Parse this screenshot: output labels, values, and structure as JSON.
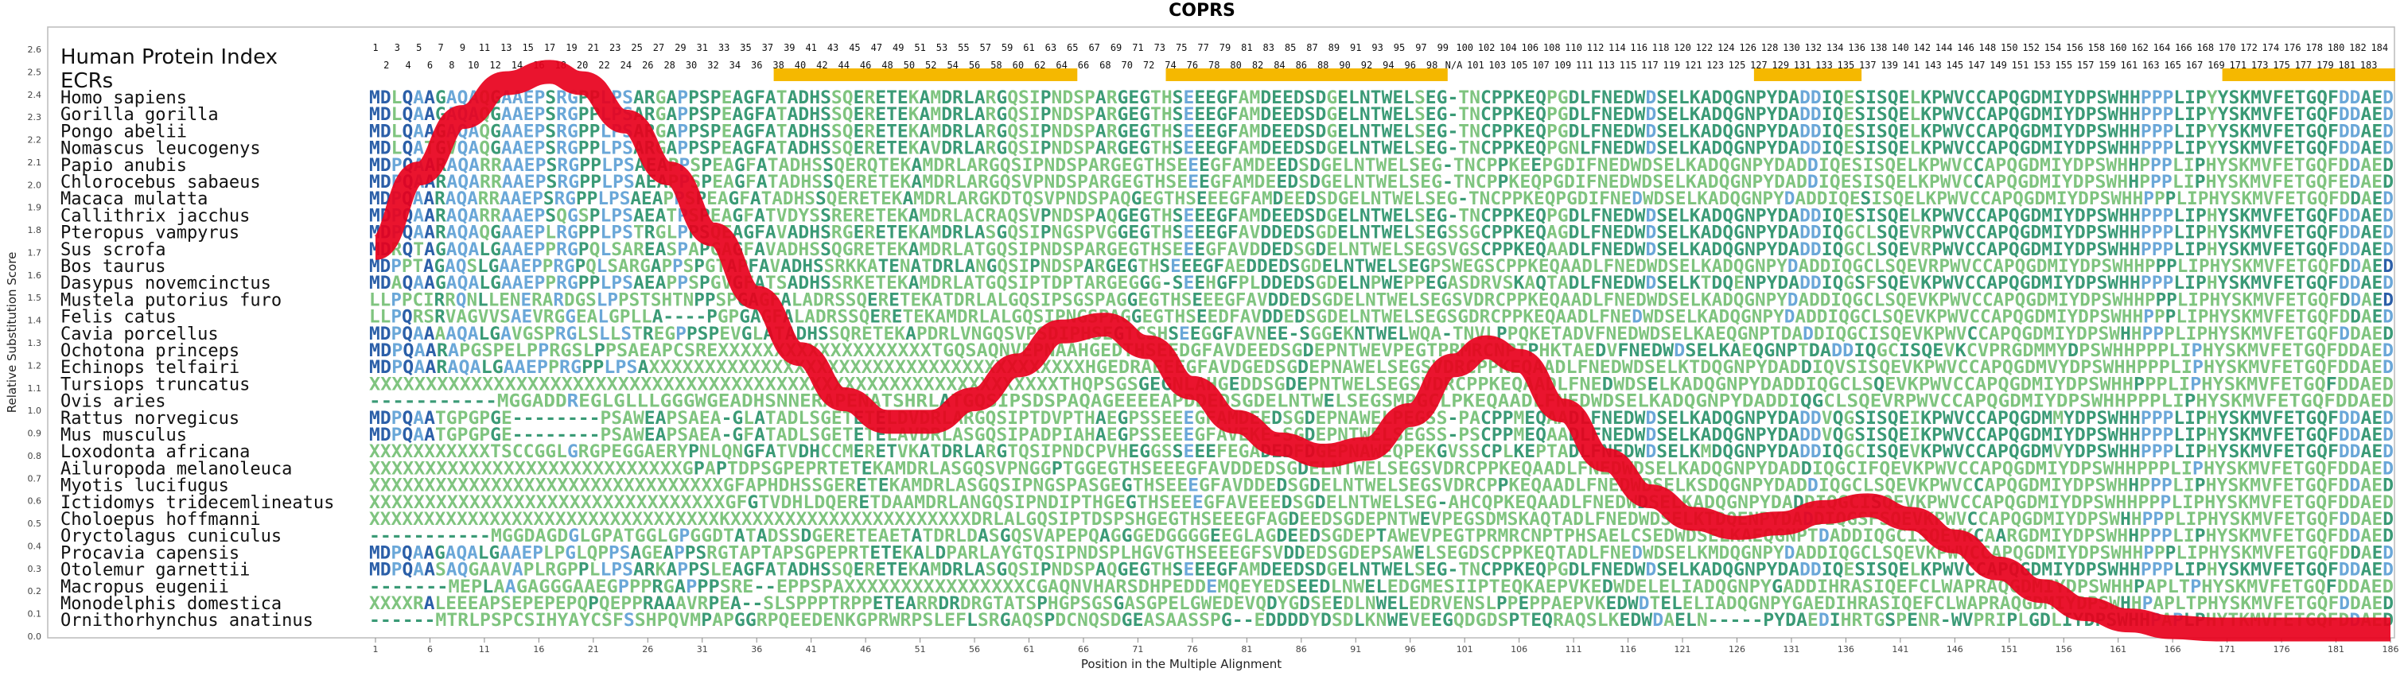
{
  "chart_data": {
    "type": "line",
    "title": "COPRS",
    "xlabel": "Position in the Multiple Alignment",
    "ylabel": "Relative Substitution Score",
    "ylim": [
      0,
      2.6
    ],
    "xlim": [
      1,
      186
    ],
    "x_ticks": [
      1,
      6,
      11,
      16,
      21,
      26,
      31,
      36,
      41,
      46,
      51,
      56,
      61,
      66,
      71,
      76,
      81,
      86,
      91,
      96,
      101,
      106,
      111,
      116,
      121,
      126,
      131,
      136,
      141,
      146,
      151,
      156,
      161,
      166,
      171,
      176,
      181,
      186
    ],
    "y_ticks": [
      0.0,
      0.1,
      0.2,
      0.3,
      0.4,
      0.5,
      0.6,
      0.7,
      0.8,
      0.9,
      1.0,
      1.1,
      1.2,
      1.3,
      1.4,
      1.5,
      1.6,
      1.7,
      1.8,
      1.9,
      2.0,
      2.1,
      2.2,
      2.3,
      2.4,
      2.5,
      2.6
    ],
    "grid": false,
    "series": [
      {
        "color": "#e8001c",
        "x": [
          1,
          5,
          9,
          13,
          17,
          20,
          24,
          28,
          32,
          36,
          40,
          44,
          48,
          52,
          56,
          60,
          64,
          68,
          72,
          76,
          80,
          84,
          88,
          92,
          96,
          100,
          103,
          106,
          110,
          114,
          118,
          122,
          126,
          130,
          134,
          138,
          142,
          146,
          150,
          154,
          158,
          162,
          166,
          170,
          174,
          178,
          182,
          186
        ],
        "y": [
          1.72,
          2.05,
          2.3,
          2.45,
          2.5,
          2.45,
          2.28,
          2.05,
          1.78,
          1.5,
          1.25,
          1.05,
          0.95,
          0.95,
          1.05,
          1.2,
          1.35,
          1.38,
          1.28,
          1.1,
          0.95,
          0.85,
          0.8,
          0.83,
          0.98,
          1.2,
          1.28,
          1.22,
          1.0,
          0.78,
          0.62,
          0.52,
          0.48,
          0.5,
          0.55,
          0.58,
          0.52,
          0.42,
          0.3,
          0.2,
          0.12,
          0.07,
          0.04,
          0.03,
          0.03,
          0.03,
          0.03,
          0.03
        ]
      }
    ]
  },
  "alignment": {
    "top_numbers_odd": [
      "1",
      "3",
      "5",
      "7",
      "9",
      "11",
      "13",
      "15",
      "17",
      "19",
      "21",
      "23",
      "25",
      "27",
      "29",
      "31",
      "33",
      "35",
      "37",
      "39",
      "41",
      "43",
      "45",
      "47",
      "49",
      "51",
      "53",
      "55",
      "57",
      "59",
      "61",
      "63",
      "65",
      "67",
      "69",
      "71",
      "73",
      "75",
      "77",
      "79",
      "81",
      "83",
      "85",
      "87",
      "89",
      "91",
      "93",
      "95",
      "97",
      "99",
      "100",
      "102",
      "104",
      "106",
      "108",
      "110",
      "112",
      "114",
      "116",
      "118",
      "120",
      "122",
      "124",
      "126",
      "128",
      "130",
      "132",
      "134",
      "136",
      "138",
      "140",
      "142",
      "144",
      "146",
      "148",
      "150",
      "152",
      "154",
      "156",
      "158",
      "160",
      "162",
      "164",
      "166",
      "168",
      "170",
      "172",
      "174",
      "176",
      "178",
      "180",
      "182",
      "184"
    ],
    "top_numbers_even": [
      "2",
      "4",
      "6",
      "8",
      "10",
      "12",
      "14",
      "16",
      "18",
      "20",
      "22",
      "24",
      "26",
      "28",
      "30",
      "32",
      "34",
      "36",
      "38",
      "40",
      "42",
      "44",
      "46",
      "48",
      "50",
      "52",
      "54",
      "56",
      "58",
      "60",
      "62",
      "64",
      "66",
      "68",
      "70",
      "72",
      "74",
      "76",
      "78",
      "80",
      "82",
      "84",
      "86",
      "88",
      "90",
      "92",
      "94",
      "96",
      "98",
      "N/A",
      "101",
      "103",
      "105",
      "107",
      "109",
      "111",
      "113",
      "115",
      "117",
      "119",
      "121",
      "123",
      "125",
      "127",
      "129",
      "131",
      "133",
      "135",
      "137",
      "139",
      "141",
      "143",
      "145",
      "147",
      "149",
      "151",
      "153",
      "155",
      "157",
      "159",
      "161",
      "163",
      "165",
      "167",
      "169",
      "171",
      "173",
      "175",
      "177",
      "179",
      "181",
      "183"
    ],
    "human_protein_index_label": "Human Protein Index",
    "ecr_label": "ECRs",
    "ecr_color": "#f5b800",
    "ecr_ranges": [
      [
        38,
        65
      ],
      [
        74,
        99
      ],
      [
        128,
        137
      ],
      [
        171,
        186
      ]
    ],
    "colors": {
      "conserved": "#2b5fa8",
      "similar": "#6aa7d8",
      "variable": "#3a9a76",
      "divergent": "#7fc47f"
    },
    "rows": [
      {
        "species": "Homo sapiens",
        "seq": "MDLQAAGAQAQGAAEPSRGPPLPSARGAPPSPEAGFATADHSSQERETEKAMDRLARGQSIPNDSPARGEGTHSEEEGFAMDEEDSDGELNTWELSEG-TNCPPKEQPGDLFNEDWDSELKADQGNPYDADDIQESISQELKPWVCCAPQGDMIYDPSWHHPPPLIPYYSKMVFETGQFDDAED"
      },
      {
        "species": "Gorilla gorilla",
        "seq": "MDLQAAGAQAQGAAEPSRGPPLPSARGAPPSPEAGFATADHSSQERETEKAMDRLARGQSIPNDSPARGEGTHSEEEGFAMDEEDSDGELNTWELSEG-TNCPPKEQPGDLFNEDWDSELKADQGNPYDADDIQESISQELKPWVCCAPQGDMIYDPSWHHPPPLIPYYSKMVFETGQFDDAED"
      },
      {
        "species": "Pongo abelii",
        "seq": "MDLQAAGAQAQGAAEPSRGPPLPSARGAPPSPEAGFATADHSSQERETEKAMDRLARGQSIPNDSPARGEGTHSEEEGFAMDEEDSDGELNTWELSEG-TNCPPKEQPGDLFNEDWDSELKADQGNPYDADDIQESISQELKPWVCCAPQGDMIYDPSWHHPPPLIPYYSKMVFETGQFDDAED"
      },
      {
        "species": "Nomascus leucogenys",
        "seq": "MDLQATGVQAQGAAEPSRGPPLPSARGAPPSPEAGFATADHSSQERETEKAVDRLARGQSIPNDSPARGEGTHSEEEGFAMDEEDSDGELNTWELSEG-TNCPPKEQPGNLFNEDWDSELKADQGNPYDADDIQESISQELKPWVCCAPQGDMIYDPSWHHPPPLIPYYSKMVFETGQFDDAED"
      },
      {
        "species": "Papio anubis",
        "seq": "MDPQAARAQARRAAEPSRGPPLPSAEAPPSPEAGFATADHSSQERQTEKAMDRLARGQSIPNDSPARGEGTHSEEEGFAMDEEDSDGELNTWELSEG-TNCPPKEEPGDIFNEDWDSELKADQGNPYDADDIQESISQELKPWVCCAPQGDMIYDPSWHHPPPLIPHYSKMVFETGQFDDAED"
      },
      {
        "species": "Chlorocebus sabaeus",
        "seq": "MDPQAARAQARRAAEPSRGPPLPSAEAPPSPEAGFATADHSSQERETEKAMDRLARGQSVPNDSPARGEGTHSEEEGFAMDEEDSDGELNTWELSEG-TNCPPKEQPGDIFNEDWDSELKADQGNPYDADDIQESISQELKPWVCCAPQGDMIYDPSWHHPPPLIPHYSKMVFETGQFEDAED"
      },
      {
        "species": "Macaca mulatta",
        "seq": "MDPQAARAQARRAAEPSRGPPLPSAEAPPSPEAGFATADHSSQERETEKAMDRLARGKDTQSVPNDSPAQGEGTHSEEEGFAMDEEDSDGELNTWELSEG-TNCPPKEQPGDIFNEDWDSELKADQGNPYDADDIQESISQELKPWVCCAPQGDMIYDPSWHHPPPLIPHYSKMVFETGQFDDAED"
      },
      {
        "species": "Callithrix jacchus",
        "seq": "MDPQAARAQARRAAEPSQGSPLPSAEATPSPEAGFATVDYSSRERETEKAMDRLACRAQSVPNDSPAQGEGTHSEEEGFAMDEEDSDGELNTWELSEG-TNCPPKEQPGDLFNEDWDSELKADQGNPYDADDIQESISQELKPWVCCAPQGDMIYDPSWHHPPPLIPHYSKMVFETGQFDDAED"
      },
      {
        "species": "Pteropus vampyrus",
        "seq": "MDPQAARAQAQGAAEPLRGPPLPSTRGLPPSQEAGFAVADHSRGERETEKAMDRLASGQSIPNGSPVGGEGTHSEEEGFAVDDEDSGDELNTWELSEGSSGCPPKEQAGDLFNEDWDSELKADQGNPYDADDIQGCLSQEVRPWVCCAPQGDMIYDPSWHHPPPLIPHYSKMVFETGQFDDAED"
      },
      {
        "species": "Sus scrofa",
        "seq": "MDRQTAGAQALGAAEPPRGPQLSAREASPAPGAGFAVADHSSQGRETEKAMDRLATGQSIPNDSPARGEGTHSEEEGFAVDDEDSGDELNTWELSEGSVGSCPPKEQAADLFNEDWDSELKADQGNPYDADDIQGCLSQEVRPWVCCAPQGDMIYDPSWHHPPPLIPHYSKMVFETGQFDDAED"
      },
      {
        "species": "Bos taurus",
        "seq": "MDPPTAGAQSLGAAEPPRGPQLSARGAPPSPGTAPFAVADHSSRKKATENATDRLANGQSIPNDSPARGEGTHSEEEGFAEDDEDSGDELNTWELSEGPSWEGSCPPKEQAADLFNEDWDSELKADQGNPYDADDIQGCLSQEVRPWVCCAPQGDMIYDPSWHHPPPLIPHYSKMVFETGQFDDAED"
      },
      {
        "species": "Dasypus novemcinctus",
        "seq": "MDAQAAGAQALGAAEPPRGPPLPSAEAPPSPGVGFATSADHSSRKETEKAMDRLATGQSIPTDPTARGEGGG-SEEHGFPLDDEDSGDELNPWEPPEGASDRVSKAQTADLFNEDWDSELKTDQENPYDADDIQGSFSQEVKPWVCCAPQGDMIYDPSWHHPPPLIPHYSKMVFETGQFDDAED"
      },
      {
        "species": "Mustela putorius furo",
        "seq": "LLPPCIRRQNLLENERARDGSLPPSTSHTNPPSPGAGFALADRSSQERETEKATDRLALGQSIPSGSPAGGEGTHSEEEGFAVDDEDSGDELNTWELSEGSVDRCPPKEQAADLFNEDWDSELKADQGNPYDADDIQGCLSQEVKPWVCCAPQGDMIYDPSWHHPPPLIPHYSKMVFETGQFDDAED"
      },
      {
        "species": "Felis catus",
        "seq": "LLPQRSRVAGVVSAEVRGGEALGPLLA----PGPGAGFALADRSSQERETEKAMDRLALGQSIPNGSPAGGEGTHSEEDFAVDDEDSGDELNTWELSEGSGDRCPPKEQAADLFNEDWDSELKADQGNPYDADDIQGCLSQEVKPWVCCAPQGDMIYDPSWHHPPPLIPHYSKMVFETGQFDDAED"
      },
      {
        "species": "Cavia porcellus",
        "seq": "MDPQAAAAQALGAVGSPRGLSLLSTREGPPSPEVGLATADHSSQRETEKAPDRLVNGQSVPSDIPHSEGTCSHSEEGGFAVNEE-SGGEKNTWELWQA-TNVLPPQKETADVFNEDWDSELKAEQGNPTDADDIQGCISQEVKPWVCCAPQGDMIYDPSWHHPPPLIPHYSKMVFETGQFDDAED"
      },
      {
        "species": "Ochotona princeps",
        "seq": "MDPQAARAPGSPELPPRGSLPPSAEAPCSREXXXXXXXXXXXXXXXXXXXTGQSAQNVEPNAAHGEDTHSEEDGFAVDEEDSGDEPNTWEVPEGTPRMRCNPTPHKTAEDVFNEDWDSELKAEQGNPTDADDIQGCISQEVKCVPRGDMMYDPSWHHPPPLIPHYSKMVFETGQFDDAED"
      },
      {
        "species": "Echinops telfairi",
        "seq": "MDPQAARAQALGAAEPPRGPPLPSAXXXXXXXXXXXXXXXXXXXXXXXXXXXXXXXXXXXXXXXHGEDRAEEEGFAVDGEDSGDEPNAWELSEGSVDRCPPKEQAADLFNEDWDSELKTDQGNPYDADDIQVSISQEVKPWVCCAPQGDMVYDPSWHHPPPLIPHYSKMVFETGQFDDAED"
      },
      {
        "species": "Tursiops truncatus",
        "seq": "XXXXXXXXXXXXXXXXXXXXXXXXXXXXXXXXXXXXXXXXXXXXXXXXXXXXXXXXXXXXXTHQPSGSGEGNLAHGEDDSGDEPNTWELSEGSVDRCPPKEQAADLFNEDWDSELKADQGNPYDADDIQGCLSQEVKPWVCCAPQGDMIYDPSWHHPPPLIPHYSKMVFETGQFDDAED"
      },
      {
        "species": "Ovis aries",
        "seq": "-----------MGGADDREGLGLLLGGGWGEADHSNNERAPENATSHRLATGQSIPSDSPAQAGEEEEAPDDEDSGDELNTWELSEGSMPGCLPKEQAADLFNEDWDSELKADQGNPYDADDIQGCLSQEVRPWVCCAPQGDMIYDPSWHHPPPLIPHYSKMVFETGQFDDAED"
      },
      {
        "species": "Rattus norvegicus",
        "seq": "MDPQAATGPGPGE--------PSAWEAPSAEA-GLATADLSGETETELDVDRLARGQSIPTDVPTHAEGPSSEEEGFAMDEEDSGDEPNAWELPEGSS-PACPPMEQAADLFNEDWDSELKADQGNPYDADDVQGSISQEIKPWVCCAPQGDMMYDPSWHHPPPLIPHYSKMVFETGQFDDAED"
      },
      {
        "species": "Mus musculus",
        "seq": "MDPQAATGPGPGE--------PSAWEAPSAEA-GFATADLSGETETELAVDRLASGQSIPADPIAHAEGPSSEEEGFAVEKE-SGDEPNTWELSEGSS-PSCPPMEQAADLFNEDWDSELKADQGNPYDADDVQGSISQEIKPWVCCAPQGDMIYDPSWHHPPPLIPHYSKMVFETGQFDDAED"
      },
      {
        "species": "Loxodonta africana",
        "seq": "XXXXXXXXXXXTSCCGGLGRGPEGGAERYPNLQNGFATVDHCCMERETVKATDRLARGTQSIPNDCPVHEGGSSEEEFEGADEDFDGEPNAWEQPEKGVSSCPLKEPTADLFNEDWDSELKMDQGNPYDADDIQGCISQEVKPWVCCAPQGDMVYDPSWHHPPPLIPHYSKMVFETGQFDDAED"
      },
      {
        "species": "Ailuropoda melanoleuca",
        "seq": "XXXXXXXXXXXXXXXXXXXXXXXXXXXXGPAPTDPSGPEPRTETEKAMDRLASGQSVPNGGPTGGEGTHSEEEGFAVDDEDSGDELNTWELSEGSVDRCPPKEQAADLFNEDWDSELKADQGNPYDADDIQGCIFQEVKPWVCCAPQGDMIYDPSWHHPPPLIPHYSKMVFETGQFDDAED"
      },
      {
        "species": "Myotis lucifugus",
        "seq": "XXXXXXXXXXXXXXXXXXXXXXXXXXXXXXXXGFAPHDHSSGERETEKAMDRLASGQSIPNGSPASGEGTHSEEEGFAVDDEDSGDELNTWELSEGSVDRCPPKEQAADLFNEDWDSELKSDQGNPYDADDIQGCLSQEVKPWVCCAPQGDMIYDPSWHHPPPLIPHYSKMVFETGQFDDAED"
      },
      {
        "species": "Ictidomys tridecemlineatus",
        "seq": "XXXXXXXXXXXXXXXXXXXXXXXXXXXXXXXXGFGTVDHLDQERETDAAMDRLANGQSIPNDIPTHGEGTHSEEEGFAVEEEDSGDELNTWELSEG-AHCQPKEQAADLFNEDWDSELKADQGNPYDADDIQGCISQEVKPWVCCAPQGDMIYDPSWHHPPPLIPHYSKMVFETGQFDDAED"
      },
      {
        "species": "Choloepus hoffmanni",
        "seq": "XXXXXXXXXXXXXXXXXXXXXXXXXXXXXXXXKXXXXXXXXXXXXXXXXXXXXXXDRLALGQSIPTDSPSHGEGTHSEEEGFAGDEEDSGDEPNTWEVPEGSDMSKAQTADLFNEDWDSELKTDQENPYDADDIQGSFSQEVKPWVCCAPQGDMIYDPSWHHPPPLIPHYSKMVFETGQFDDAED"
      },
      {
        "species": "Oryctolagus cuniculus",
        "seq": "-----------MGGDAGDGLGPATGGLGPGGDTATADSSDGERETEAETATDRLDASGQSVAPEPQAGGGEDGGGGEEGLAGDEEDSGDEPTAWEVPEGTPRMRCNPTPHSAELCSEDWDSELKAEQGNPTDADDIQGCISQEVKCAARGDMIYDPSWHHPPPLIPHYSKMVFETGQFDDAED"
      },
      {
        "species": "Procavia capensis",
        "seq": "MDPQAAGAQALGAAEPLPGLQPPSAGEAPPSRGTAPTAPSGPEPRTETEKALDPARLAYGTQSIPNDSPLHGVGTHSEEEGFSVDDEDSGDEPSAWELSEGDSCPPKEQTADLFNEDWDSELKMDQGNPYDADDIQGCLSQEVKPWVCCAPQGDMIYDPSWHHPPPLIPHYSKMVFETGQFDDAED"
      },
      {
        "species": "Otolemur garnettii",
        "seq": "MDPQAASAQGAAVAPLRGPPLLPSARKAPPSLEAGFATADHSSQERETEKAMDRLASGQSIPNDSPAQGEGTHSEEEGFAMDEEDSDGELNTWELSEG-TNCPPKEQPGDLFNEDWDSELKADQGNPYDADDIQESISQELKPWVCCAPQGDMIYDPSWHHPPPLIPHYSKMVFETGQFDDAED"
      },
      {
        "species": "Macropus eugenii",
        "seq": "-------MEPLAAGAGGGAAEGPPPRGAPPPSRE--EPPSPAXXXXXXXXXXXXXXXXCGAQNVHARSDHPEDDEMQEYEDSEEDLNWELEDGMESIIPTEQKAEPVKEDWDELELIADQGNPYGADDIHRASIQEFCLWAPRAQGDMIYDPSWHHPAPLTPHYSKMVFETGQFDDAED"
      },
      {
        "species": "Monodelphis domestica",
        "seq": "XXXXRALEEEAPSEPEPEPQPQEPPRAAAVRPEA--SLSPPPTRPPETEARRDRDRGTATSPHGPSGSGASGPELGWEDEVQDYGDSEEDLNWELEDRVENSLPPEPPAEPVKEDWDTELELIADQGNPYGAEDIHRASIQEFCLWAPRAQGDMIYDPSWHHPAPLTPHYSKMVFETGQFDDAED"
      },
      {
        "species": "Ornithorhynchus anatinus",
        "seq": "------MTRLPSPCSIHYAYCSFSSHPQVMPAPGGRPQEEDENKGPRWRPSLEFLSRGAQSPDCNQSDGEASAASSPG--EDDDDYDSDLKNWEVEEGQDGDSPTEQRAQSLKEDWDAELN-----PYDAEDIHRTGSPENR-WVPRIPLGDLIYDPSWHHPAPLPHYTKMVFETGQFDDAED"
      }
    ]
  }
}
